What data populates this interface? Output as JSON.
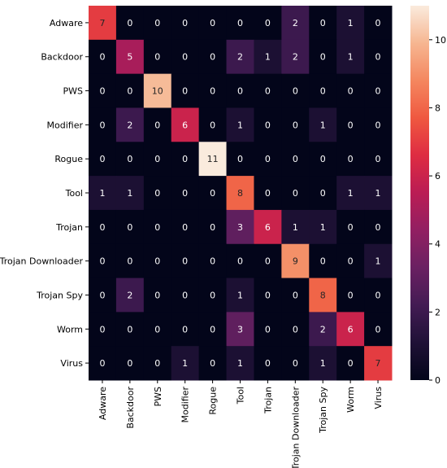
{
  "chart_data": {
    "type": "heatmap",
    "title": "",
    "xlabel": "",
    "ylabel": "",
    "row_labels": [
      "Adware",
      "Backdoor",
      "PWS",
      "Modifier",
      "Rogue",
      "Tool",
      "Trojan",
      "Trojan Downloader",
      "Trojan Spy",
      "Worm",
      "Virus"
    ],
    "col_labels": [
      "Adware",
      "Backdoor",
      "PWS",
      "Modifier",
      "Rogue",
      "Tool",
      "Trojan",
      "Trojan Downloader",
      "Trojan Spy",
      "Worm",
      "Virus"
    ],
    "values": [
      [
        7,
        0,
        0,
        0,
        0,
        0,
        0,
        2,
        0,
        1,
        0
      ],
      [
        0,
        5,
        0,
        0,
        0,
        2,
        1,
        2,
        0,
        1,
        0
      ],
      [
        0,
        0,
        10,
        0,
        0,
        0,
        0,
        0,
        0,
        0,
        0
      ],
      [
        0,
        2,
        0,
        6,
        0,
        1,
        0,
        0,
        1,
        0,
        0
      ],
      [
        0,
        0,
        0,
        0,
        11,
        0,
        0,
        0,
        0,
        0,
        0
      ],
      [
        1,
        1,
        0,
        0,
        0,
        8,
        0,
        0,
        0,
        1,
        1
      ],
      [
        0,
        0,
        0,
        0,
        0,
        3,
        6,
        1,
        1,
        0,
        0
      ],
      [
        0,
        0,
        0,
        0,
        0,
        0,
        0,
        9,
        0,
        0,
        1
      ],
      [
        0,
        2,
        0,
        0,
        0,
        1,
        0,
        0,
        8,
        0,
        0
      ],
      [
        0,
        0,
        0,
        0,
        0,
        3,
        0,
        0,
        2,
        6,
        0
      ],
      [
        0,
        0,
        0,
        1,
        0,
        1,
        0,
        0,
        1,
        0,
        7
      ]
    ],
    "colorbar": {
      "min": 0,
      "max": 11,
      "ticks": [
        0,
        2,
        4,
        6,
        8,
        10
      ],
      "colormap": "rocket"
    }
  }
}
